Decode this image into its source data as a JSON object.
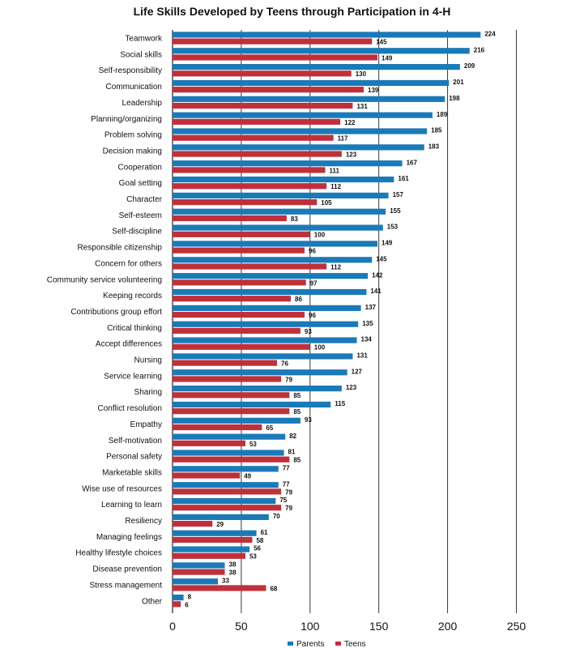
{
  "chart_data": {
    "type": "bar",
    "orientation": "horizontal",
    "title": "Life Skills Developed by Teens through Participation in 4-H",
    "categories": [
      "Teamwork",
      "Social skills",
      "Self-responsibility",
      "Communication",
      "Leadership",
      "Planning/organizing",
      "Problem solving",
      "Decision making",
      "Cooperation",
      "Goal setting",
      "Character",
      "Self-esteem",
      "Self-discipline",
      "Responsible citizenship",
      "Concern for others",
      "Community service volunteering",
      "Keeping records",
      "Contributions group effort",
      "Critical thinking",
      "Accept differences",
      "Nursing",
      "Service learning",
      "Sharing",
      "Conflict resolution",
      "Empathy",
      "Self-motivation",
      "Personal safety",
      "Marketable skills",
      "Wise use of resources",
      "Learning to learn",
      "Resiliency",
      "Managing feelings",
      "Healthy lifestyle choices",
      "Disease prevention",
      "Stress management",
      "Other"
    ],
    "series": [
      {
        "name": "Parents",
        "color": "#1a7ab8",
        "values": [
          224,
          216,
          209,
          201,
          198,
          189,
          185,
          183,
          167,
          161,
          157,
          155,
          153,
          149,
          145,
          142,
          141,
          137,
          135,
          134,
          131,
          127,
          123,
          115,
          93,
          82,
          81,
          77,
          77,
          75,
          70,
          61,
          56,
          38,
          33,
          8
        ]
      },
      {
        "name": "Teens",
        "color": "#c0303a",
        "values": [
          145,
          149,
          130,
          139,
          131,
          122,
          117,
          123,
          111,
          112,
          105,
          83,
          100,
          96,
          112,
          97,
          86,
          96,
          93,
          100,
          76,
          79,
          85,
          85,
          65,
          53,
          85,
          49,
          79,
          79,
          29,
          58,
          53,
          38,
          68,
          6
        ]
      }
    ],
    "xlim": [
      0,
      250
    ],
    "xticks": [
      "0",
      "50",
      "100",
      "150",
      "200",
      "250"
    ],
    "grid": true,
    "legend_position": "bottom"
  }
}
